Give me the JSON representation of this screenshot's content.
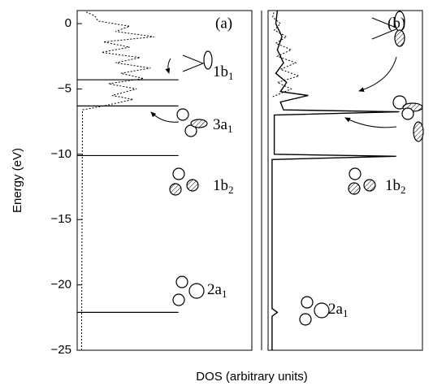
{
  "chart_data": {
    "type": "dos-panels",
    "y_label": "Energy (eV)",
    "x_label": "DOS (arbitrary units)",
    "ylim": [
      -25,
      1
    ],
    "yticks": [
      0,
      {
        "value": -5,
        "label": "−5"
      },
      {
        "value": -10,
        "label": "−10"
      },
      {
        "value": -15,
        "label": "−15"
      },
      {
        "value": -20,
        "label": "−20"
      },
      {
        "value": -25,
        "label": "−25"
      }
    ],
    "panels": [
      {
        "label": "(a)",
        "xlim": [
          0,
          10
        ],
        "levels": [
          {
            "energy": -4.3,
            "label": {
              "main": "1b",
              "sub": "1"
            }
          },
          {
            "energy": -6.3,
            "label": {
              "main": "3a",
              "sub": "1"
            }
          },
          {
            "energy": -10.1,
            "label": {
              "main": "1b",
              "sub": "2"
            }
          },
          {
            "energy": -22.1,
            "label": {
              "main": "2a",
              "sub": "1"
            }
          }
        ],
        "curves": [
          {
            "style": "dotted",
            "energy": [
              -25,
              -6.6,
              -6.3,
              -5.8,
              -5.5,
              -5.0,
              -4.6,
              -4.2,
              -3.8,
              -3.4,
              -3.0,
              -2.6,
              -2.2,
              -1.8,
              -1.4,
              -1.0,
              -0.6,
              -0.2,
              0.2,
              0.6,
              0.9
            ],
            "dos": [
              0.25,
              0.3,
              1.5,
              3.2,
              2.0,
              3.4,
              1.8,
              3.8,
              2.5,
              4.2,
              2.2,
              3.6,
              1.4,
              3.0,
              1.5,
              4.4,
              2.2,
              3.0,
              1.2,
              1.0,
              0.5
            ]
          }
        ]
      },
      {
        "label": "(b)",
        "xlim": [
          0,
          10
        ],
        "orbital_labels": [
          {
            "main": "1b",
            "sub": "2"
          },
          {
            "main": "2a",
            "sub": "1"
          }
        ],
        "curves": [
          {
            "style": "solid",
            "energy": [
              -25,
              -22.4,
              -22.1,
              -21.8,
              -10.4,
              -10.15,
              -10.0,
              -7.0,
              -6.75,
              -6.6,
              -6.0,
              -5.5,
              -5.2,
              -4.5,
              -3.8,
              -3,
              -2,
              -1,
              0,
              1
            ],
            "dos": [
              0.26,
              0.26,
              0.6,
              0.26,
              0.26,
              8.3,
              0.4,
              0.4,
              8.5,
              1.0,
              0.8,
              2.6,
              0.8,
              1.2,
              0.5,
              1.0,
              0.6,
              0.9,
              0.5,
              0.6
            ]
          },
          {
            "style": "dotted",
            "energy": [
              -5.6,
              -5,
              -4.5,
              -4,
              -3.5,
              -3,
              -2.5,
              -2,
              -1.5,
              -1,
              -0.5,
              0,
              0.5,
              1
            ],
            "dos": [
              0.3,
              1.5,
              0.6,
              2.0,
              0.8,
              1.8,
              0.6,
              1.5,
              0.5,
              1.2,
              0.4,
              0.8,
              0.3,
              0.4
            ]
          }
        ]
      }
    ]
  }
}
